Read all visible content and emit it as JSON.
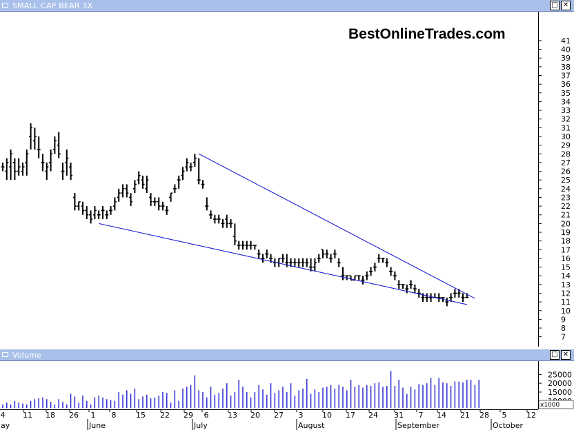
{
  "price_pane": {
    "title": "SMALL CAP BEAR 3X",
    "watermark": "BestOnlineTrades.com",
    "restore_icon": "restore-icon",
    "close_icon": "close-icon"
  },
  "volume_pane": {
    "title": "Volume",
    "multiplier_label": "x1000",
    "restore_icon": "restore-icon",
    "close_icon": "close-icon"
  },
  "colors": {
    "title_bar": "#a9c0ea",
    "trendline": "#1c1ccf",
    "volume_bar": "#1c1ccf",
    "bars": "#000000"
  },
  "chart_data": [
    {
      "type": "ohlc",
      "ylim": [
        6.5,
        42.5
      ],
      "y_ticks": [
        7,
        8,
        9,
        10,
        11,
        12,
        13,
        14,
        15,
        16,
        17,
        18,
        19,
        20,
        21,
        22,
        23,
        24,
        25,
        26,
        27,
        28,
        29,
        30,
        31,
        32,
        33,
        34,
        35,
        36,
        37,
        38,
        39,
        40,
        41
      ],
      "x_day_labels": [
        "4",
        "11",
        "18",
        "26",
        "1",
        "8",
        "15",
        "22",
        "29",
        "6",
        "13",
        "20",
        "27",
        "3",
        "10",
        "17",
        "24",
        "31",
        "7",
        "14",
        "21",
        "28",
        "5",
        "12"
      ],
      "x_month_labels": [
        "ay",
        "June",
        "July",
        "August",
        "September",
        "October"
      ],
      "bars": [
        [
          26.5,
          27,
          26,
          26.5
        ],
        [
          26,
          27.5,
          25,
          27
        ],
        [
          26.5,
          28.5,
          25,
          28
        ],
        [
          27,
          27.5,
          25,
          26
        ],
        [
          26,
          27.5,
          25.5,
          26.5
        ],
        [
          26,
          27,
          25.5,
          26.5
        ],
        [
          27,
          28.5,
          25.5,
          28
        ],
        [
          30,
          31.5,
          28.5,
          31
        ],
        [
          29.5,
          31,
          28.5,
          30
        ],
        [
          28.5,
          30,
          27.5,
          28.5
        ],
        [
          27,
          28,
          26,
          27
        ],
        [
          26,
          27,
          25,
          26.5
        ],
        [
          27,
          28.5,
          26,
          28
        ],
        [
          28.5,
          30,
          28,
          29.5
        ],
        [
          29,
          30.5,
          27.5,
          28
        ],
        [
          26,
          27,
          25,
          26
        ],
        [
          27,
          28.5,
          25.5,
          27.5
        ],
        [
          26.5,
          27,
          25,
          25.5
        ],
        [
          23,
          23.5,
          21.5,
          22
        ],
        [
          22,
          22.5,
          21.5,
          22.5
        ],
        [
          22,
          22.5,
          21,
          21.5
        ],
        [
          21.5,
          22,
          20.5,
          21
        ],
        [
          21,
          21.5,
          20,
          20.5
        ],
        [
          21,
          22,
          20.5,
          21.5
        ],
        [
          21,
          21.5,
          20.5,
          21
        ],
        [
          21.5,
          22,
          20.5,
          21.5
        ],
        [
          21,
          21.5,
          20.5,
          21
        ],
        [
          21.5,
          22,
          21,
          21.5
        ],
        [
          22,
          23,
          21.5,
          22.5
        ],
        [
          23,
          24,
          22.5,
          23.5
        ],
        [
          23.5,
          24.5,
          23,
          24
        ],
        [
          24,
          24.5,
          23,
          23.5
        ],
        [
          23,
          23.5,
          22,
          22.5
        ],
        [
          24,
          25,
          23.5,
          24.5
        ],
        [
          25,
          26,
          24.5,
          25.5
        ],
        [
          25,
          25.5,
          24,
          24.5
        ],
        [
          24,
          25.5,
          23.5,
          25
        ],
        [
          23,
          23.5,
          22,
          22.5
        ],
        [
          22.5,
          23,
          22,
          22.5
        ],
        [
          22.5,
          23,
          21.5,
          22
        ],
        [
          22,
          22.5,
          21.5,
          22
        ],
        [
          21.5,
          22,
          21,
          21.5
        ],
        [
          23,
          23.5,
          22.5,
          23.5
        ],
        [
          24,
          24.5,
          23.5,
          24
        ],
        [
          25,
          25.5,
          24,
          25
        ],
        [
          25.5,
          26.5,
          25,
          26
        ],
        [
          26.5,
          27.5,
          26,
          27
        ],
        [
          26.5,
          27,
          26,
          26.5
        ],
        [
          27,
          28,
          26.5,
          27.5
        ],
        [
          25,
          27.5,
          24.5,
          25
        ],
        [
          24.5,
          25,
          24,
          24.5
        ],
        [
          22,
          23,
          21.5,
          22
        ],
        [
          21,
          21.5,
          20.5,
          21
        ],
        [
          20.5,
          21,
          20,
          20.5
        ],
        [
          20.5,
          21,
          20,
          20.5
        ],
        [
          20,
          20.5,
          19.5,
          20
        ],
        [
          20.5,
          21,
          19.5,
          20
        ],
        [
          20,
          20.5,
          19.5,
          20
        ],
        [
          18.5,
          20,
          17.5,
          18
        ],
        [
          17.5,
          18,
          17,
          17.5
        ],
        [
          17.5,
          18,
          17,
          17.5
        ],
        [
          17.5,
          18,
          17,
          17.5
        ],
        [
          17.5,
          18,
          17,
          17.5
        ],
        [
          17.5,
          17.5,
          17,
          17.5
        ],
        [
          16.5,
          17,
          16,
          16.5
        ],
        [
          16,
          16.5,
          15.5,
          16
        ],
        [
          16.5,
          17,
          16,
          16.5
        ],
        [
          16,
          16.5,
          15.5,
          16
        ],
        [
          15.5,
          16,
          15,
          15.5
        ],
        [
          15.5,
          16,
          15,
          16
        ],
        [
          16,
          16.5,
          15.5,
          16
        ],
        [
          15.5,
          16.5,
          15,
          15.5
        ],
        [
          15.5,
          16,
          15,
          15.5
        ],
        [
          15.5,
          16,
          15,
          15.5
        ],
        [
          15.5,
          16,
          15,
          15.5
        ],
        [
          15.5,
          16,
          15,
          15.5
        ],
        [
          15.5,
          16,
          15,
          15.5
        ],
        [
          15,
          16,
          14.5,
          15
        ],
        [
          15,
          16,
          14.5,
          15.5
        ],
        [
          16,
          16.5,
          15.5,
          16
        ],
        [
          17,
          17,
          16,
          16.5
        ],
        [
          16.5,
          17,
          16,
          16.5
        ],
        [
          16,
          16.5,
          15.5,
          16
        ],
        [
          16.5,
          17,
          16,
          16.5
        ],
        [
          15.5,
          16,
          15,
          15.5
        ],
        [
          14,
          15,
          13.5,
          14
        ],
        [
          14,
          14,
          13.5,
          14
        ],
        [
          14,
          14,
          13.5,
          13.5
        ],
        [
          13.5,
          14,
          13.5,
          14
        ],
        [
          14,
          14,
          13.5,
          14
        ],
        [
          13.5,
          14,
          13,
          13.5
        ],
        [
          14,
          14.5,
          13.5,
          14
        ],
        [
          14.5,
          15,
          14,
          14.5
        ],
        [
          15,
          15.5,
          14.5,
          15
        ],
        [
          16,
          16.5,
          15.5,
          16
        ],
        [
          16,
          16,
          15.5,
          16
        ],
        [
          15.5,
          16,
          15,
          15.5
        ],
        [
          14.5,
          15,
          14,
          14.5
        ],
        [
          14,
          14.5,
          13.5,
          14
        ],
        [
          13,
          13.5,
          12.5,
          13
        ],
        [
          13,
          13,
          12.5,
          13
        ],
        [
          12.5,
          13,
          12,
          12.5
        ],
        [
          13,
          13.5,
          12.5,
          13
        ],
        [
          12.5,
          13,
          12,
          12.5
        ],
        [
          12,
          12.5,
          11.5,
          12
        ],
        [
          11.5,
          12,
          11,
          11.5
        ],
        [
          11.5,
          12,
          11,
          11.5
        ],
        [
          11.5,
          12,
          11,
          11.5
        ],
        [
          11.5,
          12,
          11.5,
          11.5
        ],
        [
          11.5,
          12,
          11,
          11.5
        ],
        [
          11.5,
          11.5,
          11,
          11.5
        ],
        [
          11,
          11.5,
          10.5,
          11
        ],
        [
          11.5,
          12,
          11,
          11.5
        ],
        [
          12,
          12.5,
          11.5,
          12
        ],
        [
          12,
          12.5,
          11.5,
          12
        ],
        [
          11.5,
          12,
          11,
          11.5
        ],
        [
          11.5,
          12,
          11.5,
          11.5
        ]
      ],
      "trendlines": [
        {
          "from_bar": 49,
          "from_y": 28,
          "to_bar": 118,
          "to_y": 11.4
        },
        {
          "from_bar": 24,
          "from_y": 20,
          "to_bar": 116,
          "to_y": 10.7
        }
      ]
    },
    {
      "type": "bar",
      "name": "Volume",
      "ylim": [
        6000,
        31000
      ],
      "y_ticks": [
        10000,
        15000,
        20000,
        25000
      ],
      "values": [
        8000,
        9000,
        8000,
        10000,
        9000,
        8500,
        8000,
        10000,
        11000,
        11500,
        12000,
        11000,
        9500,
        8000,
        11000,
        9500,
        8000,
        14000,
        12500,
        9000,
        13000,
        10000,
        8000,
        12000,
        13000,
        12000,
        11000,
        10500,
        10000,
        15000,
        13500,
        16000,
        14000,
        17000,
        11000,
        12500,
        13500,
        11500,
        12000,
        13000,
        15000,
        14500,
        9000,
        16000,
        10000,
        17000,
        18000,
        19000,
        24500,
        16000,
        15000,
        12000,
        18000,
        13500,
        14500,
        17000,
        20000,
        13000,
        15000,
        22000,
        18000,
        15000,
        12000,
        15000,
        19000,
        16500,
        13500,
        20000,
        14500,
        16000,
        18000,
        15000,
        20000,
        13000,
        16000,
        17000,
        22500,
        14000,
        16500,
        15000,
        17500,
        18000,
        19000,
        17000,
        19000,
        18000,
        16000,
        22000,
        18000,
        19000,
        17500,
        19000,
        18500,
        20000,
        20500,
        18000,
        18500,
        27000,
        18500,
        22000,
        17500,
        14000,
        18000,
        16500,
        19500,
        19000,
        20000,
        23000,
        19000,
        23000,
        20500,
        20000,
        18500,
        21000,
        21000,
        20500,
        22000,
        22000,
        19000,
        22000
      ]
    }
  ]
}
